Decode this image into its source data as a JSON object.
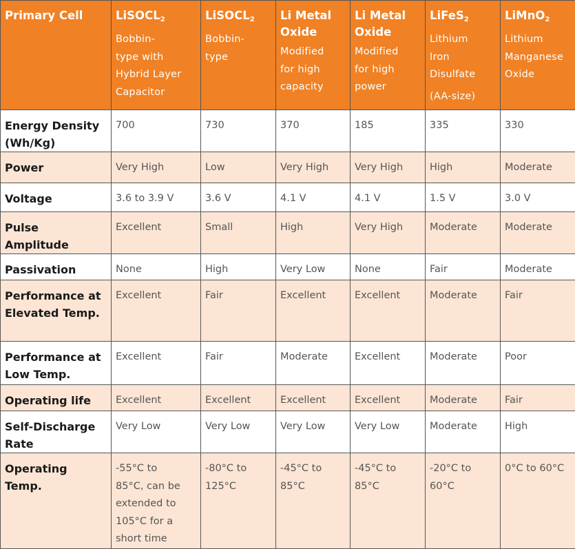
{
  "columns": [
    {
      "name": [
        "LiSOCL",
        "2",
        ""
      ],
      "desc": [
        "Bobbin-",
        "type with",
        "Hybrid Layer",
        "Capacitor"
      ]
    },
    {
      "name": [
        "LiSOCL",
        "2",
        ""
      ],
      "desc": [
        "Bobbin-",
        "type"
      ]
    },
    {
      "name": [
        "Li Metal Oxide",
        "",
        ""
      ],
      "desc": [
        "Modified",
        "for high",
        "capacity"
      ]
    },
    {
      "name": [
        "Li Metal Oxide",
        "",
        ""
      ],
      "desc": [
        "Modified",
        "for high",
        "power"
      ]
    },
    {
      "name": [
        "LiFeS",
        "2",
        ""
      ],
      "desc": [
        "Lithium",
        "Iron",
        "Disulfate"
      ],
      "note": "(AA-size)"
    },
    {
      "name": [
        "LiMnO",
        "2",
        ""
      ],
      "desc": [
        "Lithium",
        "Manganese",
        "Oxide"
      ]
    }
  ],
  "header_label": "Primary Cell",
  "rows": [
    {
      "label": [
        "Energy Density",
        "(Wh/Kg)"
      ],
      "values": [
        "700",
        "730",
        "370",
        "185",
        "335",
        "330"
      ]
    },
    {
      "label": [
        "Power"
      ],
      "values": [
        "Very High",
        "Low",
        "Very High",
        "Very High",
        "High",
        "Moderate"
      ]
    },
    {
      "label": [
        "Voltage"
      ],
      "values": [
        "3.6 to 3.9 V",
        "3.6 V",
        "4.1 V",
        "4.1 V",
        "1.5 V",
        "3.0 V"
      ]
    },
    {
      "label": [
        "Pulse",
        "Amplitude"
      ],
      "values": [
        "Excellent",
        "Small",
        "High",
        "Very High",
        "Moderate",
        "Moderate"
      ]
    },
    {
      "label": [
        "Passivation"
      ],
      "values": [
        "None",
        "High",
        "Very Low",
        "None",
        "Fair",
        "Moderate"
      ]
    },
    {
      "label": [
        "Performance at",
        "Elevated Temp."
      ],
      "values": [
        "Excellent",
        "Fair",
        "Excellent",
        "Excellent",
        "Moderate",
        "Fair"
      ]
    },
    {
      "label": [
        "Performance at",
        "Low Temp."
      ],
      "values": [
        "Excellent",
        "Fair",
        "Moderate",
        "Excellent",
        "Moderate",
        "Poor"
      ]
    },
    {
      "label": [
        "Operating life"
      ],
      "values": [
        "Excellent",
        "Excellent",
        "Excellent",
        "Excellent",
        "Moderate",
        "Fair"
      ]
    },
    {
      "label": [
        "Self-Discharge",
        "Rate"
      ],
      "values": [
        "Very Low",
        "Very Low",
        "Very Low",
        "Very Low",
        "Moderate",
        "High"
      ]
    },
    {
      "label": [
        "Operating",
        "Temp."
      ],
      "values": [
        [
          "-55°C to",
          "85°C, can be",
          "extended to",
          "105°C for a",
          "short time"
        ],
        [
          "-80°C to",
          "125°C"
        ],
        [
          "-45°C to",
          "85°C"
        ],
        [
          "-45°C to",
          "85°C"
        ],
        [
          "-20°C to",
          "60°C"
        ],
        [
          "0°C to 60°C"
        ]
      ]
    }
  ],
  "colors": {
    "header_bg": "#f08124",
    "band_bg": "#fce5d4",
    "border": "#555555"
  }
}
